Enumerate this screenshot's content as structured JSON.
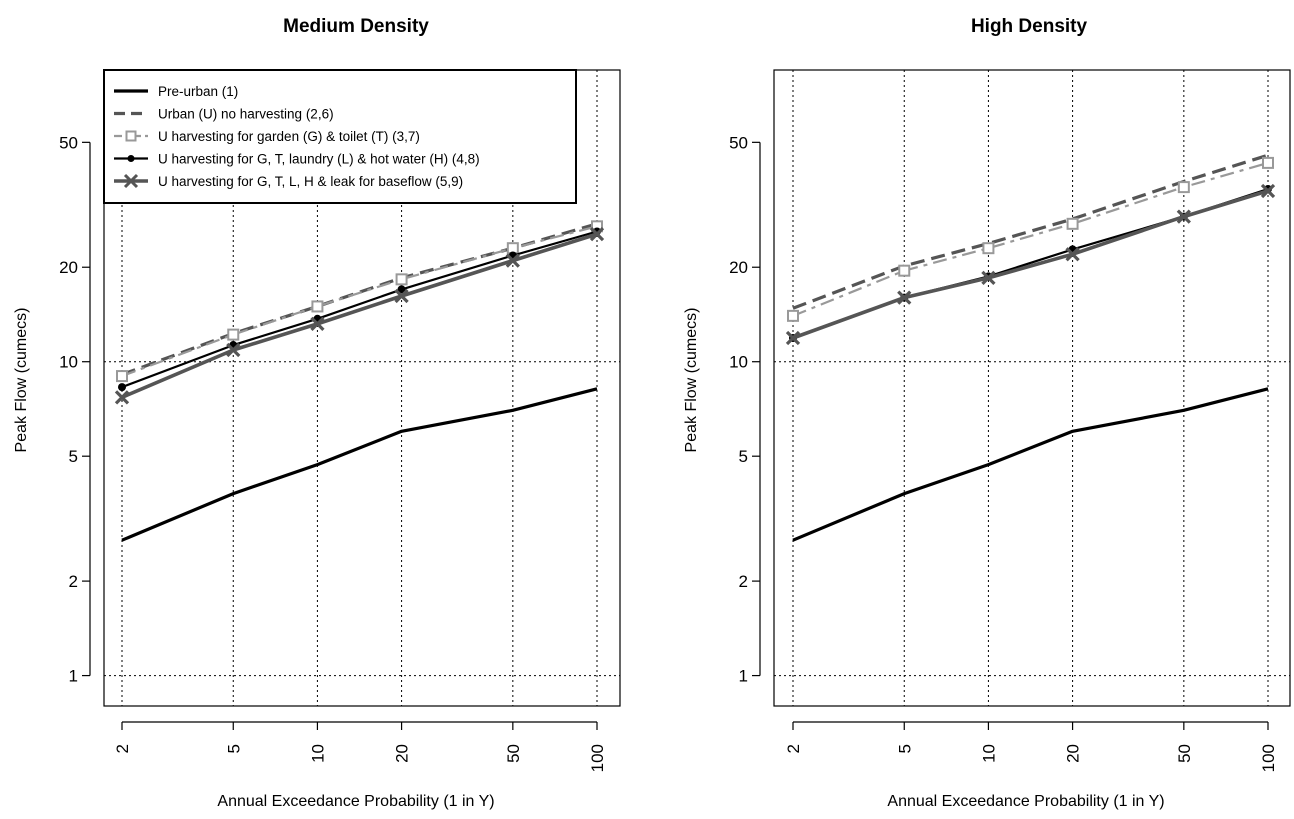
{
  "chart_data": [
    {
      "type": "line",
      "title": "Medium Density",
      "xlabel": "Annual Exceedance Probability (1 in Y)",
      "ylabel": "Peak Flow (cumecs)",
      "x_scale": "log",
      "y_scale": "log",
      "x": [
        2,
        5,
        10,
        20,
        50,
        100
      ],
      "xticks": [
        2,
        5,
        10,
        20,
        50,
        100
      ],
      "yticks": [
        1,
        2,
        5,
        10,
        20,
        50
      ],
      "xlim": [
        1.8,
        110
      ],
      "ylim": [
        0.8,
        85
      ],
      "grid": true,
      "grid_lines_x": [
        2,
        5,
        10,
        20,
        50,
        100
      ],
      "grid_lines_y": [
        1,
        10
      ],
      "legend_position": "top-left",
      "series": [
        {
          "name": "Pre-urban (1)",
          "values": [
            2.7,
            3.8,
            4.7,
            6.0,
            7.0,
            8.2
          ],
          "color": "#000000",
          "style": "solid",
          "marker": "none"
        },
        {
          "name": "Urban (U) no harvesting (2,6)",
          "values": [
            9.1,
            12.3,
            15.0,
            18.5,
            23.0,
            27.5
          ],
          "color": "#555555",
          "style": "dashed",
          "marker": "none"
        },
        {
          "name": "U harvesting for garden (G) & toilet (T) (3,7)",
          "values": [
            9.0,
            12.2,
            15.0,
            18.3,
            23.0,
            27.0
          ],
          "color": "#999999",
          "style": "dashdot",
          "marker": "square"
        },
        {
          "name": "U harvesting for G, T, laundry (L) & hot water (H) (4,8)",
          "values": [
            8.3,
            11.3,
            13.7,
            17.0,
            21.8,
            26.0
          ],
          "color": "#000000",
          "style": "solid",
          "marker": "dot"
        },
        {
          "name": "U harvesting for G, T, L, H & leak for baseflow (5,9)",
          "values": [
            7.7,
            10.9,
            13.2,
            16.2,
            21.0,
            25.5
          ],
          "color": "#555555",
          "style": "solid",
          "marker": "x"
        }
      ]
    },
    {
      "type": "line",
      "title": "High Density",
      "xlabel": "Annual Exceedance Probability (1 in Y)",
      "ylabel": "Peak Flow (cumecs)",
      "x_scale": "log",
      "y_scale": "log",
      "x": [
        2,
        5,
        10,
        20,
        50,
        100
      ],
      "xticks": [
        2,
        5,
        10,
        20,
        50,
        100
      ],
      "yticks": [
        1,
        2,
        5,
        10,
        20,
        50
      ],
      "xlim": [
        1.8,
        110
      ],
      "ylim": [
        0.8,
        85
      ],
      "grid": true,
      "grid_lines_x": [
        2,
        5,
        10,
        20,
        50,
        100
      ],
      "grid_lines_y": [
        1,
        10
      ],
      "series": [
        {
          "name": "Pre-urban (1)",
          "values": [
            2.7,
            3.8,
            4.7,
            6.0,
            7.0,
            8.2
          ],
          "color": "#000000",
          "style": "solid",
          "marker": "none"
        },
        {
          "name": "Urban (U) no harvesting (2,6)",
          "values": [
            14.8,
            20.2,
            23.8,
            28.5,
            37.5,
            45.5
          ],
          "color": "#555555",
          "style": "dashed",
          "marker": "none"
        },
        {
          "name": "U harvesting for garden (G) & toilet (T) (3,7)",
          "values": [
            14.0,
            19.5,
            23.0,
            27.5,
            36.0,
            43.0
          ],
          "color": "#999999",
          "style": "dashdot",
          "marker": "square"
        },
        {
          "name": "U harvesting for G, T, laundry (L) & hot water (H) (4,8)",
          "values": [
            11.9,
            16.0,
            18.7,
            22.8,
            29.0,
            35.5
          ],
          "color": "#000000",
          "style": "solid",
          "marker": "dot"
        },
        {
          "name": "U harvesting for G, T, L, H & leak for baseflow (5,9)",
          "values": [
            11.9,
            16.0,
            18.5,
            22.0,
            29.0,
            35.0
          ],
          "color": "#555555",
          "style": "solid",
          "marker": "x"
        }
      ]
    }
  ]
}
